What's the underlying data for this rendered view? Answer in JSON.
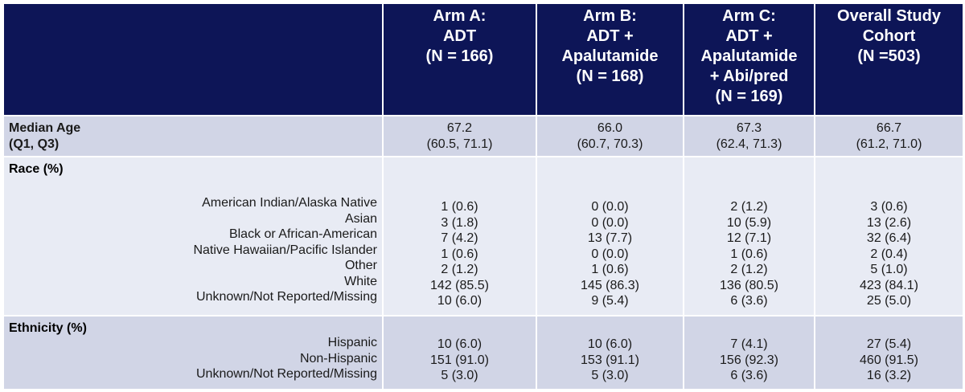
{
  "header": {
    "empty": "",
    "columns": [
      {
        "lines": [
          "Arm A:",
          "ADT",
          "(N = 166)"
        ]
      },
      {
        "lines": [
          "Arm B:",
          "ADT +",
          "Apalutamide",
          "(N = 168)"
        ]
      },
      {
        "lines": [
          "Arm C:",
          "ADT +",
          "Apalutamide",
          "+ Abi/pred",
          "(N = 169)"
        ]
      },
      {
        "lines": [
          "Overall Study",
          "Cohort",
          "(N =503)"
        ]
      }
    ]
  },
  "median_age": {
    "label_line1": "Median Age",
    "label_line2": "(Q1, Q3)",
    "values": [
      {
        "median": "67.2",
        "iqr": "(60.5, 71.1)"
      },
      {
        "median": "66.0",
        "iqr": "(60.7, 70.3)"
      },
      {
        "median": "67.3",
        "iqr": "(62.4, 71.3)"
      },
      {
        "median": "66.7",
        "iqr": "(61.2, 71.0)"
      }
    ]
  },
  "race": {
    "label": "Race (%)",
    "categories": [
      "American Indian/Alaska Native",
      "Asian",
      "Black or African-American",
      "Native Hawaiian/Pacific Islander",
      "Other",
      "White",
      "Unknown/Not Reported/Missing"
    ],
    "arms": [
      [
        "1 (0.6)",
        "3 (1.8)",
        "7 (4.2)",
        "1 (0.6)",
        "2 (1.2)",
        "142 (85.5)",
        "10 (6.0)"
      ],
      [
        "0 (0.0)",
        "0 (0.0)",
        "13 (7.7)",
        "0 (0.0)",
        "1 (0.6)",
        "145 (86.3)",
        "9 (5.4)"
      ],
      [
        "2 (1.2)",
        "10 (5.9)",
        "12 (7.1)",
        "1 (0.6)",
        "2 (1.2)",
        "136 (80.5)",
        "6 (3.6)"
      ],
      [
        "3 (0.6)",
        "13 (2.6)",
        "32 (6.4)",
        "2 (0.4)",
        "5 (1.0)",
        "423 (84.1)",
        "25 (5.0)"
      ]
    ]
  },
  "ethnicity": {
    "label": "Ethnicity (%)",
    "categories": [
      "Hispanic",
      "Non-Hispanic",
      "Unknown/Not Reported/Missing"
    ],
    "arms": [
      [
        "10 (6.0)",
        "151 (91.0)",
        "5 (3.0)"
      ],
      [
        "10 (6.0)",
        "153 (91.1)",
        "5 (3.0)"
      ],
      [
        "7 (4.1)",
        "156 (92.3)",
        "6 (3.6)"
      ],
      [
        "27 (5.4)",
        "460 (91.5)",
        "16 (3.2)"
      ]
    ]
  },
  "colors": {
    "header_bg": "#0d1557",
    "row_dark": "#d1d5e6",
    "row_light": "#e8ebf4"
  }
}
